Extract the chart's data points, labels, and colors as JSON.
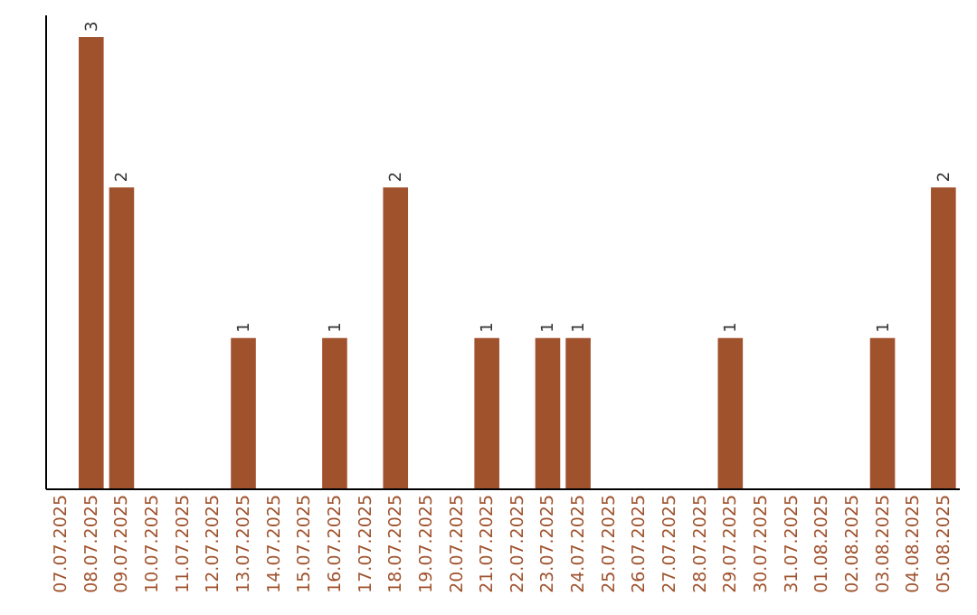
{
  "chart_data": {
    "type": "bar",
    "categories": [
      "07.07.2025",
      "08.07.2025",
      "09.07.2025",
      "10.07.2025",
      "11.07.2025",
      "12.07.2025",
      "13.07.2025",
      "14.07.2025",
      "15.07.2025",
      "16.07.2025",
      "17.07.2025",
      "18.07.2025",
      "19.07.2025",
      "20.07.2025",
      "21.07.2025",
      "22.07.2025",
      "23.07.2025",
      "24.07.2025",
      "25.07.2025",
      "26.07.2025",
      "27.07.2025",
      "28.07.2025",
      "29.07.2025",
      "30.07.2025",
      "31.07.2025",
      "01.08.2025",
      "02.08.2025",
      "03.08.2025",
      "04.08.2025",
      "05.08.2025"
    ],
    "values": [
      0,
      3,
      2,
      0,
      0,
      0,
      1,
      0,
      0,
      1,
      0,
      2,
      0,
      0,
      1,
      0,
      1,
      1,
      0,
      0,
      0,
      0,
      1,
      0,
      0,
      0,
      0,
      1,
      0,
      2
    ],
    "value_labels": [
      null,
      "3",
      "2",
      null,
      null,
      null,
      "1",
      null,
      null,
      "1",
      null,
      "2",
      null,
      null,
      "1",
      null,
      "1",
      "1",
      null,
      null,
      null,
      null,
      "1",
      null,
      null,
      null,
      null,
      "1",
      null,
      "2"
    ],
    "color": "#a0522d",
    "ylim": [
      0,
      3.15
    ],
    "tick_labels": "x"
  }
}
